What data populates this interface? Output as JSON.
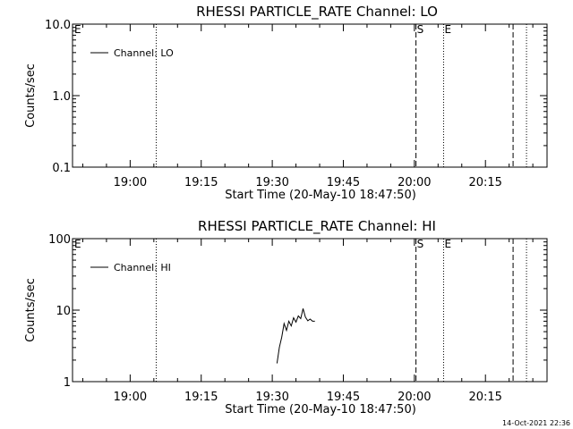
{
  "chart_data": [
    {
      "type": "line",
      "title": "RHESSI PARTICLE_RATE Channel: LO",
      "xlabel": "Start Time (20-May-10 18:47:50)",
      "ylabel": "Counts/sec",
      "yscale": "log",
      "ylim": [
        0.1,
        10.0
      ],
      "yticks": [
        "0.1",
        "1.0",
        "10.0"
      ],
      "xlim": [
        "18:47:50",
        "20:28:00"
      ],
      "xticks": [
        "19:00",
        "19:15",
        "19:30",
        "19:45",
        "20:00",
        "20:15"
      ],
      "legend": {
        "placement": "top-left",
        "entries": [
          "Channel: LO"
        ]
      },
      "series": [
        {
          "name": "Channel: LO",
          "x": [],
          "y": []
        }
      ],
      "vlines": [
        {
          "time": "19:05:30",
          "style": "dotted",
          "label": ""
        },
        {
          "time": "20:00:20",
          "style": "dashed",
          "label": "S"
        },
        {
          "time": "20:06:10",
          "style": "dotted",
          "label": "E"
        },
        {
          "time": "20:20:50",
          "style": "dashed",
          "label": ""
        },
        {
          "time": "20:23:40",
          "style": "dotted",
          "label": ""
        }
      ],
      "corner_mark": "E"
    },
    {
      "type": "line",
      "title": "RHESSI PARTICLE_RATE Channel: HI",
      "xlabel": "Start Time (20-May-10 18:47:50)",
      "ylabel": "Counts/sec",
      "yscale": "log",
      "ylim": [
        1,
        100
      ],
      "yticks": [
        "1",
        "10",
        "100"
      ],
      "xlim": [
        "18:47:50",
        "20:28:00"
      ],
      "xticks": [
        "19:00",
        "19:15",
        "19:30",
        "19:45",
        "20:00",
        "20:15"
      ],
      "legend": {
        "placement": "top-left",
        "entries": [
          "Channel: HI"
        ]
      },
      "series": [
        {
          "name": "Channel: HI",
          "x": [
            "19:31:00",
            "19:31:30",
            "19:32:00",
            "19:32:30",
            "19:33:00",
            "19:33:30",
            "19:34:00",
            "19:34:30",
            "19:35:00",
            "19:35:30",
            "19:36:00",
            "19:36:30",
            "19:37:00",
            "19:37:30",
            "19:38:00",
            "19:38:30",
            "19:39:00"
          ],
          "y": [
            1.8,
            3.0,
            4.2,
            6.5,
            5.2,
            7.0,
            6.0,
            7.8,
            6.8,
            8.3,
            7.6,
            10.5,
            8.0,
            7.1,
            7.5,
            7.0,
            7.0
          ]
        }
      ],
      "vlines": [
        {
          "time": "19:05:30",
          "style": "dotted",
          "label": ""
        },
        {
          "time": "20:00:20",
          "style": "dashed",
          "label": "S"
        },
        {
          "time": "20:06:10",
          "style": "dotted",
          "label": "E"
        },
        {
          "time": "20:20:50",
          "style": "dashed",
          "label": ""
        },
        {
          "time": "20:23:40",
          "style": "dotted",
          "label": ""
        }
      ],
      "corner_mark": "E"
    }
  ],
  "footer": {
    "timestamp": "14-Oct-2021 22:36"
  }
}
